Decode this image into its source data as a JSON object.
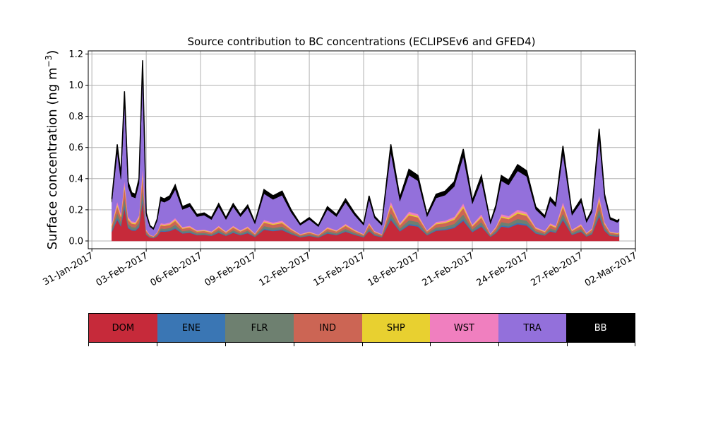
{
  "chart_data": {
    "type": "area",
    "stacked": true,
    "title": "Source contribution to BC concentrations (ECLIPSEv6 and GFED4)",
    "ylabel": "Surface concentration (ng m",
    "ylabel_sup": "−3",
    "ylabel_close": ")",
    "ylim": [
      -0.05,
      1.22
    ],
    "xlim": [
      -0.2,
      30.0
    ],
    "x_units": "days since 31-Jan-2017",
    "yticks": [
      0.0,
      0.2,
      0.4,
      0.6,
      0.8,
      1.0,
      1.2
    ],
    "ytick_labels": [
      "0.0",
      "0.2",
      "0.4",
      "0.6",
      "0.8",
      "1.0",
      "1.2"
    ],
    "xticks": [
      0,
      3,
      6,
      9,
      12,
      15,
      18,
      21,
      24,
      27,
      30
    ],
    "xtick_labels": [
      "31-Jan-2017",
      "03-Feb-2017",
      "06-Feb-2017",
      "09-Feb-2017",
      "12-Feb-2017",
      "15-Feb-2017",
      "18-Feb-2017",
      "21-Feb-2017",
      "24-Feb-2017",
      "27-Feb-2017",
      "02-Mar-2017"
    ],
    "grid": true,
    "x": [
      1.1,
      1.4,
      1.6,
      1.8,
      2.0,
      2.2,
      2.4,
      2.6,
      2.8,
      3.0,
      3.2,
      3.4,
      3.6,
      3.8,
      4.0,
      4.3,
      4.6,
      5.0,
      5.4,
      5.8,
      6.2,
      6.6,
      7.0,
      7.4,
      7.8,
      8.2,
      8.6,
      9.0,
      9.5,
      10.0,
      10.5,
      11.0,
      11.5,
      12.0,
      12.5,
      13.0,
      13.5,
      14.0,
      14.5,
      15.0,
      15.3,
      15.6,
      16.0,
      16.5,
      17.0,
      17.5,
      18.0,
      18.5,
      19.0,
      19.5,
      20.0,
      20.5,
      21.0,
      21.5,
      22.0,
      22.3,
      22.6,
      23.0,
      23.5,
      24.0,
      24.5,
      25.0,
      25.3,
      25.6,
      26.0,
      26.5,
      27.0,
      27.3,
      27.6,
      28.0,
      28.3,
      28.6,
      29.0,
      29.1
    ],
    "total": [
      0.27,
      0.62,
      0.43,
      0.96,
      0.38,
      0.31,
      0.3,
      0.4,
      1.16,
      0.18,
      0.1,
      0.08,
      0.14,
      0.28,
      0.27,
      0.29,
      0.36,
      0.22,
      0.24,
      0.17,
      0.18,
      0.15,
      0.24,
      0.15,
      0.24,
      0.17,
      0.23,
      0.12,
      0.33,
      0.29,
      0.32,
      0.2,
      0.11,
      0.15,
      0.1,
      0.22,
      0.17,
      0.27,
      0.18,
      0.11,
      0.29,
      0.16,
      0.11,
      0.62,
      0.28,
      0.46,
      0.42,
      0.17,
      0.3,
      0.32,
      0.38,
      0.59,
      0.26,
      0.42,
      0.12,
      0.23,
      0.42,
      0.39,
      0.49,
      0.45,
      0.22,
      0.16,
      0.28,
      0.24,
      0.61,
      0.18,
      0.27,
      0.13,
      0.2,
      0.72,
      0.3,
      0.15,
      0.13,
      0.14
    ],
    "series": [
      {
        "name": "DOM",
        "color": "#c62a3a",
        "fraction": 0.22
      },
      {
        "name": "ENE",
        "color": "#3a76b4",
        "fraction": 0.02
      },
      {
        "name": "FLR",
        "color": "#6e8070",
        "fraction": 0.05
      },
      {
        "name": "IND",
        "color": "#cc6554",
        "fraction": 0.07
      },
      {
        "name": "SHP",
        "color": "#e8d030",
        "fraction": 0.02
      },
      {
        "name": "WST",
        "color": "#f07fbf",
        "fraction": 0.03
      },
      {
        "name": "TRA",
        "color": "#9370db",
        "fraction": 0.51
      },
      {
        "name": "BB",
        "color": "#000000",
        "fraction": 0.08
      }
    ]
  },
  "legend": {
    "items": [
      {
        "label": "DOM",
        "color": "#c62a3a",
        "text_color": "#000000"
      },
      {
        "label": "ENE",
        "color": "#3a76b4",
        "text_color": "#000000"
      },
      {
        "label": "FLR",
        "color": "#6e8070",
        "text_color": "#000000"
      },
      {
        "label": "IND",
        "color": "#cc6554",
        "text_color": "#000000"
      },
      {
        "label": "SHP",
        "color": "#e8d030",
        "text_color": "#000000"
      },
      {
        "label": "WST",
        "color": "#f07fbf",
        "text_color": "#000000"
      },
      {
        "label": "TRA",
        "color": "#9370db",
        "text_color": "#000000"
      },
      {
        "label": "BB",
        "color": "#000000",
        "text_color": "#ffffff"
      }
    ]
  }
}
